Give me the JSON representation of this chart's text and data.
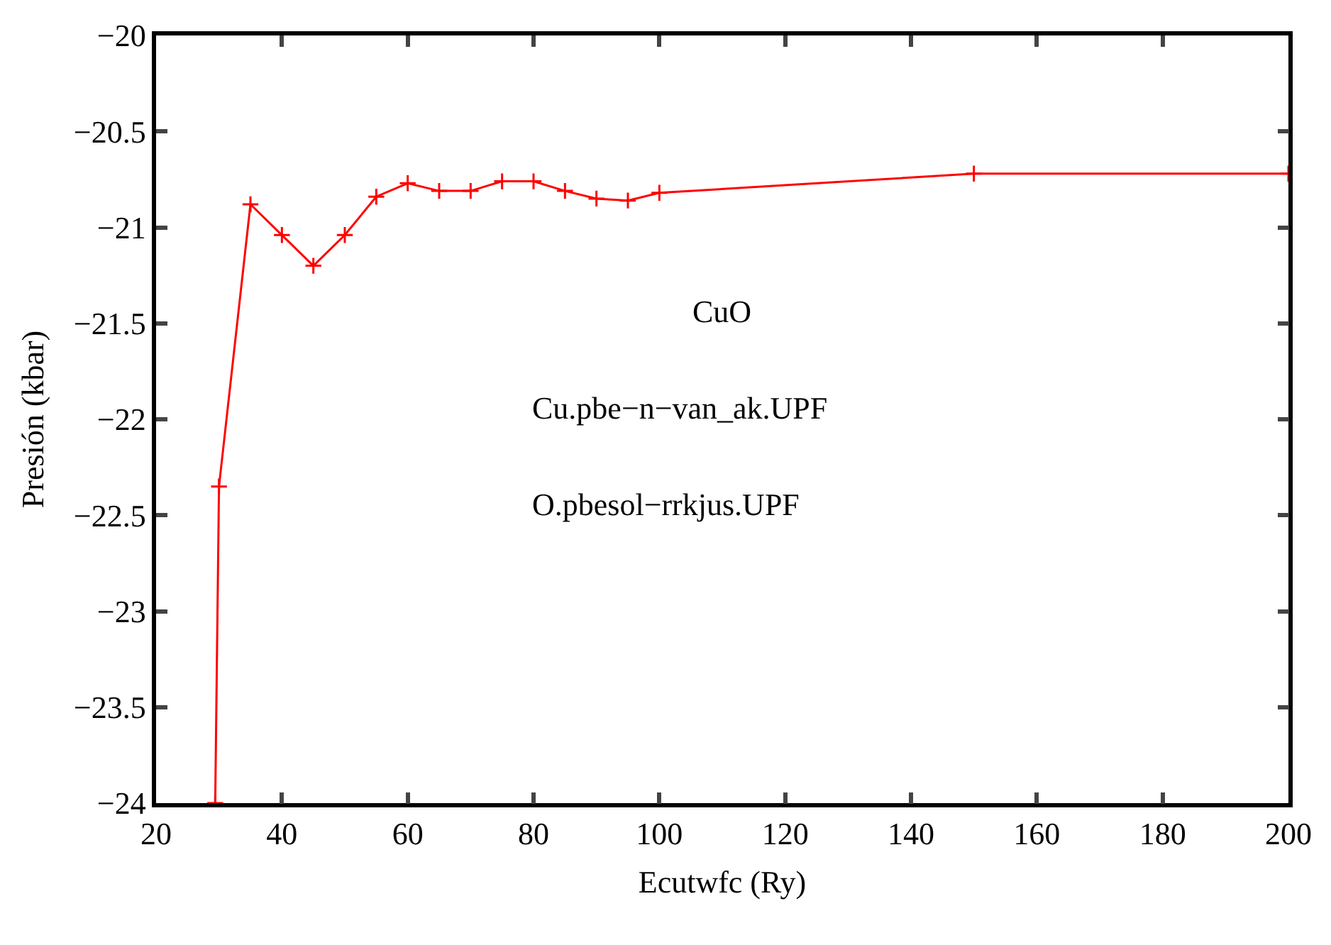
{
  "chart_data": {
    "type": "line",
    "xlabel": "Ecutwfc (Ry)",
    "ylabel": "Presión (kbar)",
    "annotations": [
      "CuO",
      "Cu.pbe−n−van_ak.UPF",
      "O.pbesol−rrkjus.UPF"
    ],
    "x": [
      29.4,
      30,
      35,
      40,
      45,
      50,
      55,
      60,
      65,
      70,
      75,
      80,
      85,
      90,
      95,
      100,
      150,
      200
    ],
    "series": [
      {
        "color": "#ff0000",
        "values": [
          -24,
          -22.35,
          -20.88,
          -21.04,
          -21.2,
          -21.04,
          -20.84,
          -20.77,
          -20.81,
          -20.81,
          -20.76,
          -20.76,
          -20.81,
          -20.85,
          -20.86,
          -20.82,
          -20.72,
          -20.72
        ]
      }
    ],
    "xlim": [
      20,
      200
    ],
    "xticks": [
      20,
      40,
      60,
      80,
      100,
      120,
      140,
      160,
      180,
      200
    ],
    "ylim": [
      -24,
      -20
    ],
    "yticks": [
      {
        "value": -24,
        "label": "−24"
      },
      {
        "value": -23.5,
        "label": "−23.5"
      },
      {
        "value": -23,
        "label": "−23"
      },
      {
        "value": -22.5,
        "label": "−22.5"
      },
      {
        "value": -22,
        "label": "−22"
      },
      {
        "value": -21.5,
        "label": "−21.5"
      },
      {
        "value": -21,
        "label": "−21"
      },
      {
        "value": -20.5,
        "label": "−20.5"
      },
      {
        "value": -20,
        "label": "−20"
      }
    ],
    "legend": false,
    "marker": "cross",
    "line_style": "solid"
  }
}
